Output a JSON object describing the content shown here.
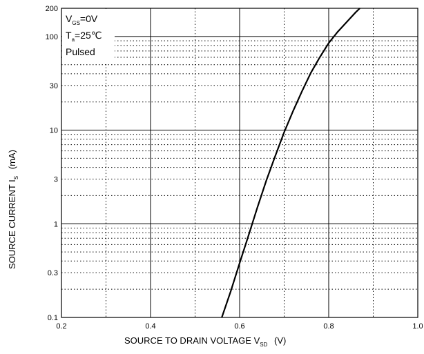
{
  "chart_data": {
    "type": "line",
    "xscale": "linear",
    "yscale": "log",
    "xlim": [
      0.2,
      1.0
    ],
    "ylim": [
      0.1,
      200
    ],
    "x_ticks": [
      0.2,
      0.4,
      0.6,
      0.8,
      1.0
    ],
    "x_tick_labels": [
      "0.2",
      "0.4",
      "0.6",
      "0.8",
      "1.0"
    ],
    "y_ticks": [
      0.1,
      0.3,
      1,
      3,
      10,
      30,
      100,
      200
    ],
    "y_tick_labels": [
      "0.1",
      "0.3",
      "1",
      "3",
      "10",
      "30",
      "100",
      "200"
    ],
    "grid": true,
    "xlabel": {
      "main": "SOURCE TO DRAIN VOLTAGE   V",
      "sub": "SD",
      "unit": "(V)"
    },
    "ylabel": {
      "main": "SOURCE CURRENT   I",
      "sub": "S",
      "unit": "(mA)"
    },
    "annotations": [
      {
        "main": "V",
        "sub": "GS",
        "rest": "=0V"
      },
      {
        "main": "T",
        "sub": "a",
        "rest": "=25℃"
      },
      {
        "main": "Pulsed",
        "sub": "",
        "rest": ""
      }
    ],
    "series": [
      {
        "x": [
          0.56,
          0.58,
          0.6,
          0.62,
          0.64,
          0.66,
          0.68,
          0.7,
          0.72,
          0.74,
          0.76,
          0.78,
          0.8,
          0.82,
          0.84,
          0.86,
          0.87
        ],
        "y": [
          0.1,
          0.19,
          0.38,
          0.75,
          1.5,
          2.9,
          5.3,
          9.5,
          16,
          26,
          41,
          60,
          85,
          112,
          142,
          180,
          200
        ]
      }
    ]
  }
}
